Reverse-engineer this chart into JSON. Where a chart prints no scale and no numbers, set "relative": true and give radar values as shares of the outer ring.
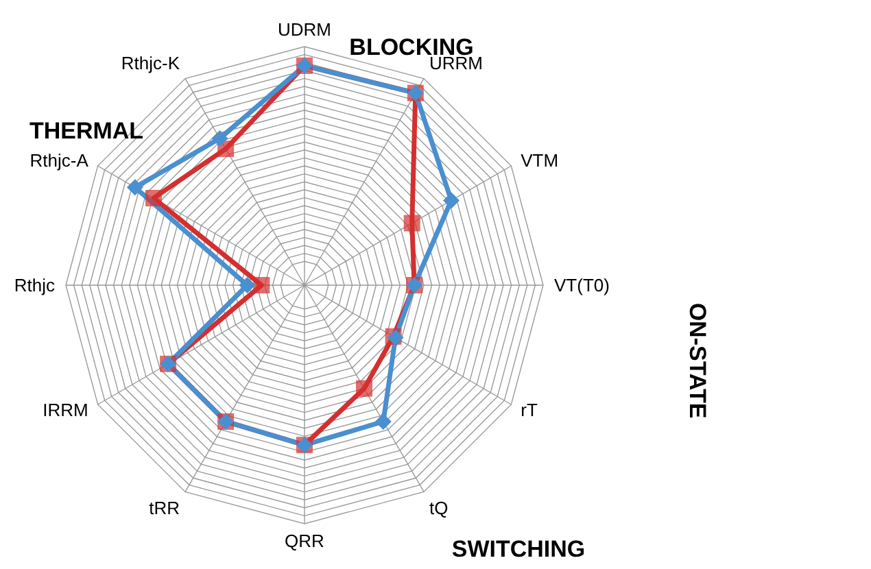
{
  "chart_data": {
    "type": "radar",
    "relative": true,
    "grid": true,
    "legend": false,
    "categories": [
      "UDRM",
      "URRM",
      "VTM",
      "VT(T0)",
      "rT",
      "tQ",
      "QRR",
      "tRR",
      "IRRM",
      "Rthjc",
      "Rthjc-A",
      "Rthjc-K"
    ],
    "series": [
      {
        "color": "#d42f2f",
        "marker": "square",
        "values": [
          0.92,
          0.93,
          0.52,
          0.46,
          0.43,
          0.5,
          0.67,
          0.66,
          0.66,
          0.18,
          0.73,
          0.66
        ]
      },
      {
        "color": "#4a8fd0",
        "marker": "diamond",
        "values": [
          0.92,
          0.93,
          0.71,
          0.46,
          0.44,
          0.66,
          0.67,
          0.66,
          0.66,
          0.24,
          0.82,
          0.71
        ]
      }
    ],
    "annotations": [
      "BLOCKING",
      "ON-STATE",
      "SWITCHING",
      "THERMAL"
    ]
  }
}
